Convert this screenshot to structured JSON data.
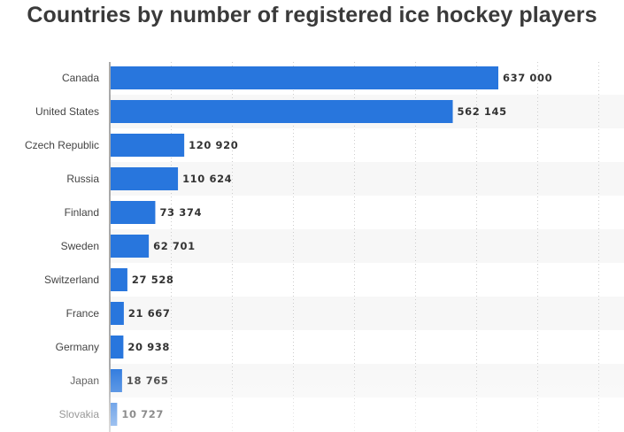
{
  "chart_data": {
    "type": "bar",
    "orientation": "horizontal",
    "title": "Countries by number of registered ice hockey players",
    "categories": [
      "Canada",
      "United States",
      "Czech Republic",
      "Russia",
      "Finland",
      "Sweden",
      "Switzerland",
      "France",
      "Germany",
      "Japan",
      "Slovakia"
    ],
    "values": [
      637000,
      562145,
      120920,
      110624,
      73374,
      62701,
      27528,
      21667,
      20938,
      18765,
      10727
    ],
    "value_labels": [
      "637 000",
      "562 145",
      "120 920",
      "110 624",
      "73 374",
      "62 701",
      "27 528",
      "21 667",
      "20 938",
      "18 765",
      "10 727"
    ],
    "xlim": [
      0,
      800000
    ],
    "grid": "vertical dotted",
    "legend": "none",
    "colors": {
      "bar": "#2876dd",
      "stripe": "#f7f7f7",
      "grid": "#cccccc",
      "axis": "#555555"
    }
  }
}
